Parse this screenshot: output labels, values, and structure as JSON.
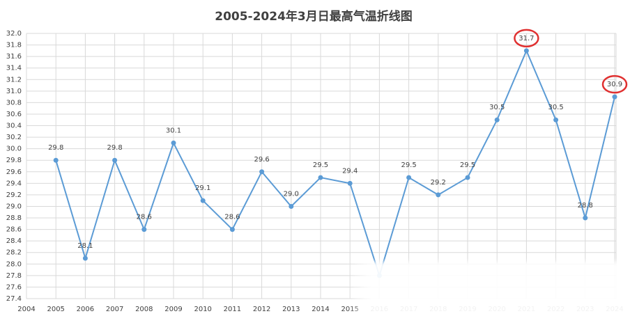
{
  "chart_data": {
    "type": "line",
    "title": "2005-2024年3月日最高气温折线图",
    "x": [
      2005,
      2006,
      2007,
      2008,
      2009,
      2010,
      2011,
      2012,
      2013,
      2014,
      2015,
      2016,
      2017,
      2018,
      2019,
      2020,
      2021,
      2022,
      2023,
      2024
    ],
    "series": [
      {
        "color": "#5b9bd5",
        "values": [
          29.8,
          28.1,
          29.8,
          28.6,
          30.1,
          29.1,
          28.6,
          29.6,
          29.0,
          29.5,
          29.4,
          27.8,
          29.5,
          29.2,
          29.5,
          30.5,
          31.7,
          30.5,
          28.8,
          30.9
        ],
        "value_labels": [
          "29.8",
          "28.1",
          "29.8",
          "28.6",
          "30.1",
          "29.1",
          "28.6",
          "29.6",
          "29.0",
          "29.5",
          "29.4",
          null,
          "29.5",
          "29.2",
          "29.5",
          "30.5",
          "31.7",
          "30.5",
          "28.8",
          "30.9"
        ]
      }
    ],
    "xlim": [
      2004,
      2024
    ],
    "xticks": [
      2004,
      2005,
      2006,
      2007,
      2008,
      2009,
      2010,
      2011,
      2012,
      2013,
      2014,
      2015,
      2016,
      2017,
      2018,
      2019,
      2020,
      2021,
      2022,
      2023,
      2024
    ],
    "ylim": [
      27.4,
      32.0
    ],
    "yticks": [
      27.4,
      27.6,
      27.8,
      {
        "value": 28.0,
        "label": "28.0"
      },
      28.2,
      28.4,
      28.6,
      28.8,
      {
        "value": 29.0,
        "label": "29.0"
      },
      29.2,
      29.4,
      29.6,
      29.8,
      {
        "value": 30.0,
        "label": "30.0"
      },
      30.2,
      30.4,
      30.6,
      30.8,
      {
        "value": 31.0,
        "label": "31.0"
      },
      31.2,
      31.4,
      31.6,
      31.8,
      {
        "value": 32.0,
        "label": "32.0"
      }
    ],
    "grid": true,
    "highlighted": [
      2021,
      2024
    ]
  }
}
